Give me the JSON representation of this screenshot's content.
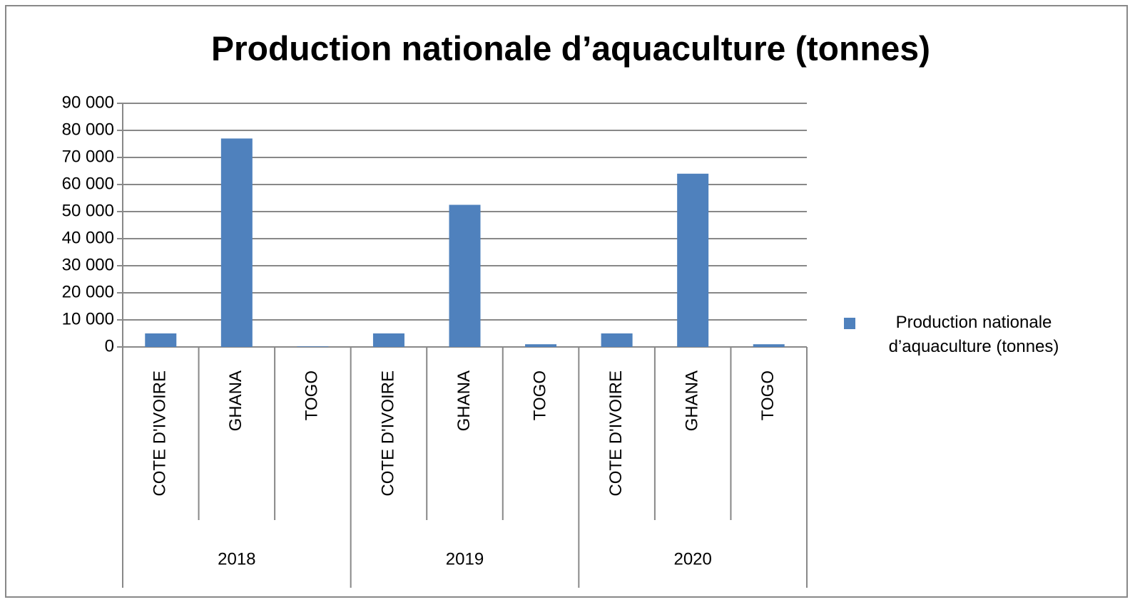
{
  "chart_data": {
    "type": "bar",
    "title": "Production nationale d’aquaculture (tonnes)",
    "categories": [
      "COTE D'IVOIRE",
      "GHANA",
      "TOGO",
      "COTE D'IVOIRE",
      "GHANA",
      "TOGO",
      "COTE D'IVOIRE",
      "GHANA",
      "TOGO"
    ],
    "groups": [
      "2018",
      "2019",
      "2020"
    ],
    "series": [
      {
        "name": "Production nationale d’aquaculture (tonnes)",
        "color": "#4f81bd",
        "values": [
          5000,
          77000,
          200,
          5000,
          52500,
          1000,
          5000,
          64000,
          1000
        ]
      }
    ],
    "ylim": [
      0,
      90000
    ],
    "yticks": [
      {
        "value": 0,
        "label": "0"
      },
      {
        "value": 10000,
        "label": "10 000"
      },
      {
        "value": 20000,
        "label": "20 000"
      },
      {
        "value": 30000,
        "label": "30 000"
      },
      {
        "value": 40000,
        "label": "40 000"
      },
      {
        "value": 50000,
        "label": "50 000"
      },
      {
        "value": 60000,
        "label": "60 000"
      },
      {
        "value": 70000,
        "label": "70 000"
      },
      {
        "value": 80000,
        "label": "80 000"
      },
      {
        "value": 90000,
        "label": "90 000"
      }
    ],
    "grid": true,
    "legend": "right"
  }
}
